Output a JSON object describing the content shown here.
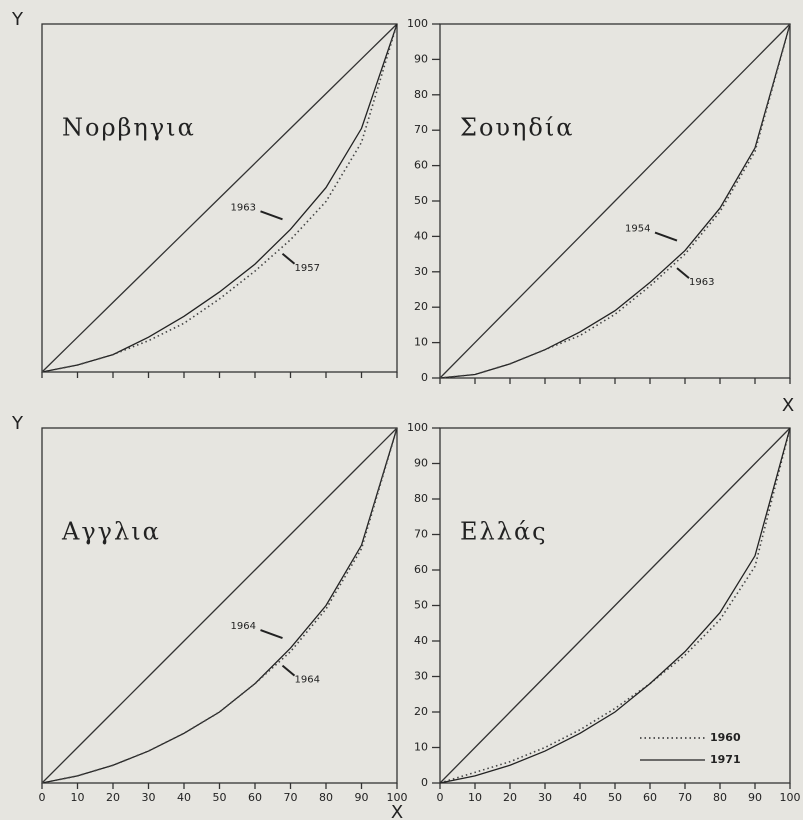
{
  "chart_data": [
    {
      "type": "line",
      "title": "Νορβηγια",
      "ylabel": "Y",
      "x": [
        0,
        10,
        20,
        30,
        40,
        50,
        60,
        70,
        80,
        90,
        100
      ],
      "xlim": [
        0,
        100
      ],
      "ylim": [
        0,
        100
      ],
      "xticks": [
        0,
        10,
        20,
        30,
        40,
        50,
        60,
        70,
        80,
        90,
        100
      ],
      "series": [
        {
          "color": "#333333",
          "dash": false,
          "values": [
            0,
            10,
            20,
            30,
            40,
            50,
            60,
            70,
            80,
            90,
            100
          ]
        },
        {
          "name": "1963",
          "color": "#222222",
          "dash": false,
          "values": [
            0,
            2,
            5,
            10,
            16,
            23,
            31,
            41,
            53,
            70,
            100
          ]
        },
        {
          "name": "1957",
          "color": "#444444",
          "dash": true,
          "values": [
            0,
            2,
            5,
            9,
            14,
            21,
            29,
            38,
            49,
            66,
            100
          ]
        }
      ]
    },
    {
      "type": "line",
      "title": "Σουηδία",
      "xlabel": "X",
      "x": [
        0,
        10,
        20,
        30,
        40,
        50,
        60,
        70,
        80,
        90,
        100
      ],
      "xlim": [
        0,
        100
      ],
      "ylim": [
        0,
        100
      ],
      "xticks": [
        0,
        10,
        20,
        30,
        40,
        50,
        60,
        70,
        80,
        90,
        100
      ],
      "yticks": [
        0,
        10,
        20,
        30,
        40,
        50,
        60,
        70,
        80,
        90,
        100
      ],
      "series": [
        {
          "color": "#333333",
          "dash": false,
          "values": [
            0,
            10,
            20,
            30,
            40,
            50,
            60,
            70,
            80,
            90,
            100
          ]
        },
        {
          "name": "1954",
          "color": "#222222",
          "dash": false,
          "values": [
            0,
            1,
            4,
            8,
            13,
            19,
            27,
            36,
            48,
            65,
            100
          ]
        },
        {
          "name": "1963",
          "color": "#444444",
          "dash": true,
          "values": [
            0,
            1,
            4,
            8,
            12,
            18,
            26,
            35,
            47,
            64,
            100
          ]
        }
      ]
    },
    {
      "type": "line",
      "title": "Αγγλια",
      "ylabel": "Y",
      "xlabel": "X",
      "x": [
        0,
        10,
        20,
        30,
        40,
        50,
        60,
        70,
        80,
        90,
        100
      ],
      "xlim": [
        0,
        100
      ],
      "ylim": [
        0,
        100
      ],
      "xticks": [
        0,
        10,
        20,
        30,
        40,
        50,
        60,
        70,
        80,
        90,
        100
      ],
      "series": [
        {
          "color": "#333333",
          "dash": false,
          "values": [
            0,
            10,
            20,
            30,
            40,
            50,
            60,
            70,
            80,
            90,
            100
          ]
        },
        {
          "name": "1964",
          "color": "#222222",
          "dash": false,
          "values": [
            0,
            2,
            5,
            9,
            14,
            20,
            28,
            38,
            50,
            67,
            100
          ]
        },
        {
          "name": "1964",
          "color": "#444444",
          "dash": true,
          "values": [
            0,
            2,
            5,
            9,
            14,
            20,
            28,
            37,
            49,
            66,
            100
          ]
        }
      ]
    },
    {
      "type": "line",
      "title": "Ελλάς",
      "legend": "lower right",
      "x": [
        0,
        10,
        20,
        30,
        40,
        50,
        60,
        70,
        80,
        90,
        100
      ],
      "xlim": [
        0,
        100
      ],
      "ylim": [
        0,
        100
      ],
      "xticks": [
        0,
        10,
        20,
        30,
        40,
        50,
        60,
        70,
        80,
        90,
        100
      ],
      "yticks": [
        0,
        10,
        20,
        30,
        40,
        50,
        60,
        70,
        80,
        90,
        100
      ],
      "series": [
        {
          "color": "#333333",
          "dash": false,
          "values": [
            0,
            10,
            20,
            30,
            40,
            50,
            60,
            70,
            80,
            90,
            100
          ]
        },
        {
          "name": "1960",
          "color": "#444444",
          "dash": true,
          "values": [
            0,
            3,
            6,
            10,
            15,
            21,
            28,
            36,
            46,
            61,
            100
          ]
        },
        {
          "name": "1971",
          "color": "#222222",
          "dash": false,
          "values": [
            0,
            2,
            5,
            9,
            14,
            20,
            28,
            37,
            48,
            64,
            100
          ]
        }
      ]
    }
  ]
}
